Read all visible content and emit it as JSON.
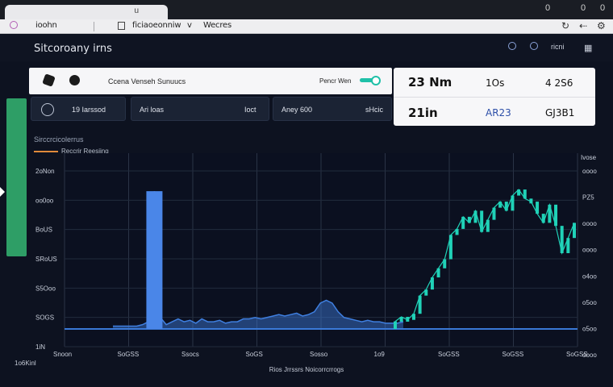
{
  "browser": {
    "tab_close": "u",
    "toolbar_items": [
      "ioohn",
      "ficiaoeonniw",
      "v",
      "Wecres"
    ],
    "window_controls": [
      "0",
      "0",
      "0"
    ]
  },
  "app": {
    "title": "Sitcoroany irns",
    "header_right_text": "ricni",
    "icons": [
      "gear-icon",
      "clock-icon",
      "grid-icon"
    ]
  },
  "controls": {
    "label": "Ccena Venseh Sunuucs",
    "toggle_label": "Pencr Wen",
    "segments": [
      {
        "label": "19 Iarssod",
        "sub": ""
      },
      {
        "label": "Ari loas",
        "sub": "Ioct"
      },
      {
        "label": "Aney 600",
        "sub": "sHcic"
      }
    ]
  },
  "stats": {
    "row1": [
      "23 Nm",
      "1Os",
      "4 2S6"
    ],
    "row2": [
      "21in",
      "AR23",
      "GJ3B1"
    ]
  },
  "chart_data": {
    "type": "line",
    "title": "",
    "subtitle": "Sirccrcicolerrus",
    "legend": [
      "Reccrir Reesiing"
    ],
    "xlabel": "Rios Jrrssrs Noicorrcrrogs",
    "ylabel": "",
    "x_ticks": [
      "Snoon",
      "SoGSS",
      "Ssocs",
      "SoGS",
      "Sosso",
      "1o9",
      "SoGSS",
      "SoGSS",
      "SoGSS"
    ],
    "y_ticks_left": [
      "2oNon",
      "oo0oo",
      "BoUS",
      "SRoUS",
      "S5Ooo",
      "SOGS",
      "1iN"
    ],
    "y_ticks_right": [
      "oooo",
      "PZ5",
      "oooo",
      "oooo",
      "o4oo",
      "o5oo",
      "o5oo",
      "oooo"
    ],
    "y_top_right": "Ivose",
    "corner_label": "1o6Kinl",
    "series": [
      {
        "color": "#3f7fe0",
        "values": [
          0.02,
          0.02,
          0.02,
          0.02,
          0.02,
          0.03,
          0.05,
          0.96,
          0.08,
          0.03,
          0.05,
          0.07,
          0.05,
          0.06,
          0.04,
          0.07,
          0.05,
          0.05,
          0.06,
          0.04,
          0.05,
          0.05,
          0.07,
          0.07,
          0.08,
          0.07,
          0.08,
          0.09,
          0.1,
          0.09,
          0.1,
          0.11,
          0.09,
          0.1,
          0.12,
          0.18,
          0.2,
          0.18,
          0.12,
          0.08,
          0.07,
          0.06,
          0.05,
          0.06,
          0.05,
          0.05,
          0.04,
          0.04,
          0.04,
          0.05
        ]
      },
      {
        "color": "#20d2b8",
        "values": [
          0.05,
          0.08,
          0.06,
          0.1,
          0.22,
          0.26,
          0.34,
          0.4,
          0.46,
          0.62,
          0.66,
          0.74,
          0.7,
          0.78,
          0.64,
          0.72,
          0.8,
          0.84,
          0.78,
          0.88,
          0.92,
          0.86,
          0.84,
          0.76,
          0.7,
          0.82,
          0.68,
          0.5,
          0.6,
          0.7
        ]
      }
    ]
  }
}
